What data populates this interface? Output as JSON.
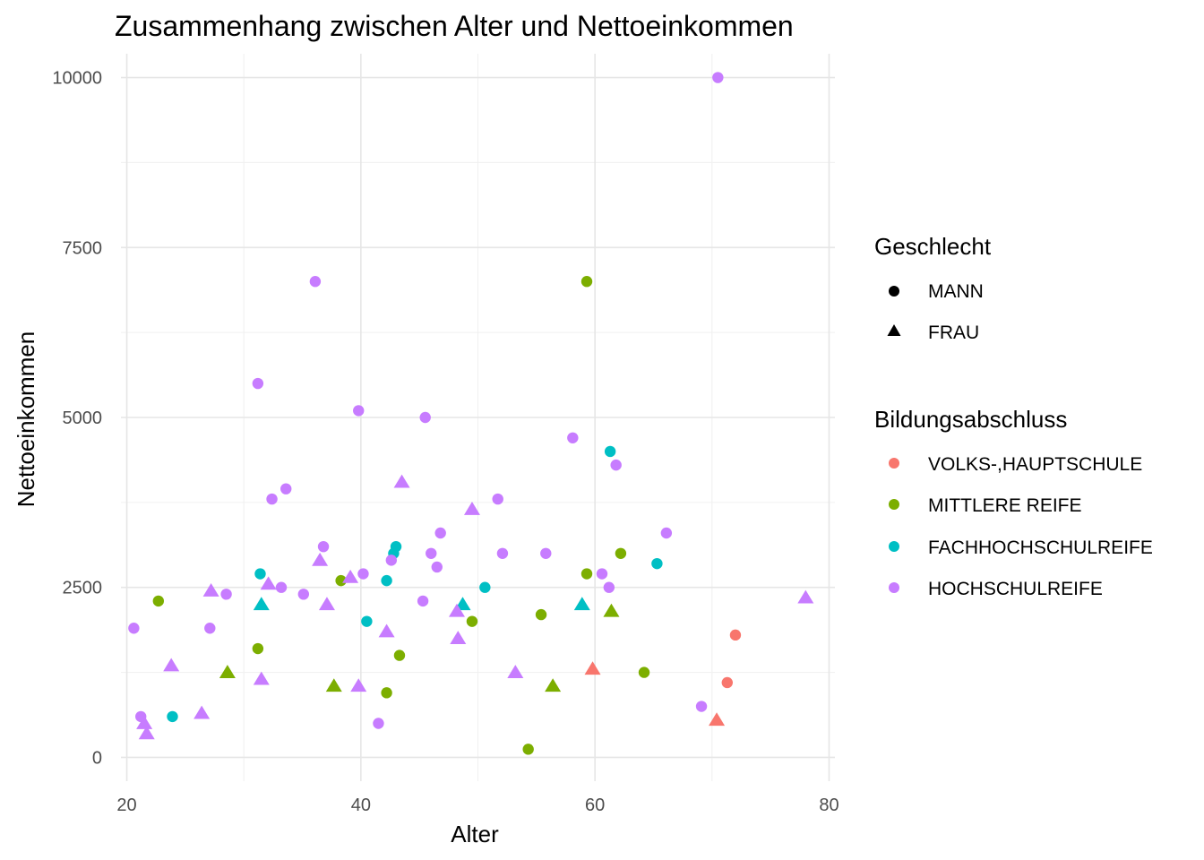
{
  "chart_data": {
    "type": "scatter",
    "title": "Zusammenhang zwischen Alter und Nettoeinkommen",
    "xlabel": "Alter",
    "ylabel": "Nettoeinkommen",
    "xlim": [
      19.5,
      80.5
    ],
    "ylim": [
      -350,
      10350
    ],
    "x_ticks": [
      20,
      40,
      60,
      80
    ],
    "y_ticks": [
      0,
      2500,
      5000,
      7500,
      10000
    ],
    "x_tick_labels": [
      "20",
      "40",
      "60",
      "80"
    ],
    "y_tick_labels": [
      "0",
      "2500",
      "5000",
      "7500",
      "10000"
    ],
    "grid": true,
    "legend_position": "right",
    "legends": {
      "shape": {
        "title": "Geschlecht",
        "entries": [
          {
            "label": "MANN",
            "shape": "circle"
          },
          {
            "label": "FRAU",
            "shape": "triangle"
          }
        ]
      },
      "color": {
        "title": "Bildungsabschluss",
        "entries": [
          {
            "label": "VOLKS-,HAUPTSCHULE",
            "color": "#F8766D"
          },
          {
            "label": "MITTLERE REIFE",
            "color": "#7CAE00"
          },
          {
            "label": "FACHHOCHSCHULREIFE",
            "color": "#00BFC4"
          },
          {
            "label": "HOCHSCHULREIFE",
            "color": "#C77CFF"
          }
        ]
      }
    },
    "series": [
      {
        "name": "VOLKS-,HAUPTSCHULE",
        "color": "#F8766D",
        "points": [
          {
            "x": 72,
            "y": 1800,
            "sex": "MANN"
          },
          {
            "x": 71.3,
            "y": 1100,
            "sex": "MANN"
          },
          {
            "x": 59.8,
            "y": 1300,
            "sex": "FRAU"
          },
          {
            "x": 70.4,
            "y": 550,
            "sex": "FRAU"
          }
        ]
      },
      {
        "name": "MITTLERE REIFE",
        "color": "#7CAE00",
        "points": [
          {
            "x": 22.7,
            "y": 2300,
            "sex": "MANN"
          },
          {
            "x": 31.2,
            "y": 1600,
            "sex": "MANN"
          },
          {
            "x": 38.3,
            "y": 2600,
            "sex": "MANN"
          },
          {
            "x": 42.2,
            "y": 950,
            "sex": "MANN"
          },
          {
            "x": 43.3,
            "y": 1500,
            "sex": "MANN"
          },
          {
            "x": 49.5,
            "y": 2000,
            "sex": "MANN"
          },
          {
            "x": 54.3,
            "y": 120,
            "sex": "MANN"
          },
          {
            "x": 55.4,
            "y": 2100,
            "sex": "MANN"
          },
          {
            "x": 59.3,
            "y": 2700,
            "sex": "MANN"
          },
          {
            "x": 59.3,
            "y": 7000,
            "sex": "MANN"
          },
          {
            "x": 62.2,
            "y": 3000,
            "sex": "MANN"
          },
          {
            "x": 64.2,
            "y": 1250,
            "sex": "MANN"
          },
          {
            "x": 28.6,
            "y": 1250,
            "sex": "FRAU"
          },
          {
            "x": 37.7,
            "y": 1050,
            "sex": "FRAU"
          },
          {
            "x": 56.4,
            "y": 1050,
            "sex": "FRAU"
          },
          {
            "x": 61.4,
            "y": 2150,
            "sex": "FRAU"
          }
        ]
      },
      {
        "name": "FACHHOCHSCHULREIFE",
        "color": "#00BFC4",
        "points": [
          {
            "x": 23.9,
            "y": 600,
            "sex": "MANN"
          },
          {
            "x": 31.4,
            "y": 2700,
            "sex": "MANN"
          },
          {
            "x": 40.5,
            "y": 2000,
            "sex": "MANN"
          },
          {
            "x": 42.2,
            "y": 2600,
            "sex": "MANN"
          },
          {
            "x": 42.8,
            "y": 3000,
            "sex": "MANN"
          },
          {
            "x": 43,
            "y": 3100,
            "sex": "MANN"
          },
          {
            "x": 50.6,
            "y": 2500,
            "sex": "MANN"
          },
          {
            "x": 61.3,
            "y": 4500,
            "sex": "MANN"
          },
          {
            "x": 65.3,
            "y": 2850,
            "sex": "MANN"
          },
          {
            "x": 31.5,
            "y": 2250,
            "sex": "FRAU"
          },
          {
            "x": 48.7,
            "y": 2250,
            "sex": "FRAU"
          },
          {
            "x": 58.9,
            "y": 2250,
            "sex": "FRAU"
          }
        ]
      },
      {
        "name": "HOCHSCHULREIFE",
        "color": "#C77CFF",
        "points": [
          {
            "x": 20.6,
            "y": 1900,
            "sex": "MANN"
          },
          {
            "x": 21.2,
            "y": 600,
            "sex": "MANN"
          },
          {
            "x": 27.1,
            "y": 1900,
            "sex": "MANN"
          },
          {
            "x": 28.5,
            "y": 2400,
            "sex": "MANN"
          },
          {
            "x": 31.2,
            "y": 5500,
            "sex": "MANN"
          },
          {
            "x": 32.4,
            "y": 3800,
            "sex": "MANN"
          },
          {
            "x": 33.2,
            "y": 2500,
            "sex": "MANN"
          },
          {
            "x": 33.6,
            "y": 3950,
            "sex": "MANN"
          },
          {
            "x": 35.1,
            "y": 2400,
            "sex": "MANN"
          },
          {
            "x": 36.1,
            "y": 7000,
            "sex": "MANN"
          },
          {
            "x": 36.8,
            "y": 3100,
            "sex": "MANN"
          },
          {
            "x": 39.8,
            "y": 5100,
            "sex": "MANN"
          },
          {
            "x": 40.2,
            "y": 2700,
            "sex": "MANN"
          },
          {
            "x": 41.5,
            "y": 500,
            "sex": "MANN"
          },
          {
            "x": 42.6,
            "y": 2900,
            "sex": "MANN"
          },
          {
            "x": 45.3,
            "y": 2300,
            "sex": "MANN"
          },
          {
            "x": 45.5,
            "y": 5000,
            "sex": "MANN"
          },
          {
            "x": 46,
            "y": 3000,
            "sex": "MANN"
          },
          {
            "x": 46.5,
            "y": 2800,
            "sex": "MANN"
          },
          {
            "x": 46.8,
            "y": 3300,
            "sex": "MANN"
          },
          {
            "x": 51.7,
            "y": 3800,
            "sex": "MANN"
          },
          {
            "x": 52.1,
            "y": 3000,
            "sex": "MANN"
          },
          {
            "x": 55.8,
            "y": 3000,
            "sex": "MANN"
          },
          {
            "x": 58.1,
            "y": 4700,
            "sex": "MANN"
          },
          {
            "x": 60.6,
            "y": 2700,
            "sex": "MANN"
          },
          {
            "x": 61.2,
            "y": 2500,
            "sex": "MANN"
          },
          {
            "x": 61.8,
            "y": 4300,
            "sex": "MANN"
          },
          {
            "x": 66.1,
            "y": 3300,
            "sex": "MANN"
          },
          {
            "x": 69.1,
            "y": 750,
            "sex": "MANN"
          },
          {
            "x": 70.5,
            "y": 10000,
            "sex": "MANN"
          },
          {
            "x": 21.5,
            "y": 500,
            "sex": "FRAU"
          },
          {
            "x": 21.7,
            "y": 350,
            "sex": "FRAU"
          },
          {
            "x": 23.8,
            "y": 1350,
            "sex": "FRAU"
          },
          {
            "x": 26.4,
            "y": 650,
            "sex": "FRAU"
          },
          {
            "x": 27.2,
            "y": 2450,
            "sex": "FRAU"
          },
          {
            "x": 31.5,
            "y": 1150,
            "sex": "FRAU"
          },
          {
            "x": 32.1,
            "y": 2550,
            "sex": "FRAU"
          },
          {
            "x": 36.5,
            "y": 2900,
            "sex": "FRAU"
          },
          {
            "x": 37.1,
            "y": 2250,
            "sex": "FRAU"
          },
          {
            "x": 39.1,
            "y": 2650,
            "sex": "FRAU"
          },
          {
            "x": 39.8,
            "y": 1050,
            "sex": "FRAU"
          },
          {
            "x": 42.2,
            "y": 1850,
            "sex": "FRAU"
          },
          {
            "x": 43.5,
            "y": 4050,
            "sex": "FRAU"
          },
          {
            "x": 48.2,
            "y": 2150,
            "sex": "FRAU"
          },
          {
            "x": 48.3,
            "y": 1750,
            "sex": "FRAU"
          },
          {
            "x": 49.5,
            "y": 3650,
            "sex": "FRAU"
          },
          {
            "x": 53.2,
            "y": 1250,
            "sex": "FRAU"
          },
          {
            "x": 78,
            "y": 2350,
            "sex": "FRAU"
          }
        ]
      }
    ]
  }
}
